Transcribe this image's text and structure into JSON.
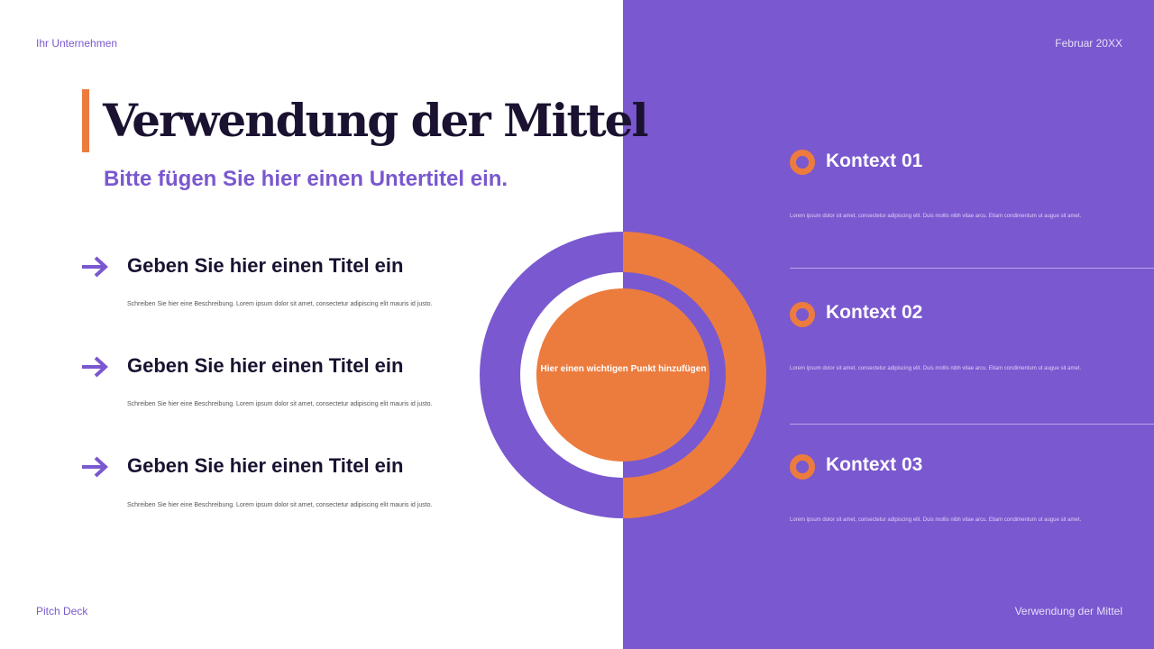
{
  "header": {
    "company": "Ihr Unternehmen",
    "date": "Februar 20XX"
  },
  "footer": {
    "left": "Pitch Deck",
    "right": "Verwendung der Mittel"
  },
  "title": "Verwendung der Mittel",
  "subtitle": "Bitte fügen Sie hier einen Untertitel ein.",
  "items": [
    {
      "title": "Geben Sie hier einen Titel ein",
      "desc": "Schreiben Sie hier eine Beschreibung. Lorem ipsum dolor sit amet, consectetur adipiscing elit mauris id justo.",
      "icon": "arrow-right-icon"
    },
    {
      "title": "Geben Sie hier einen Titel ein",
      "desc": "Schreiben Sie hier eine Beschreibung. Lorem ipsum dolor sit amet, consectetur adipiscing elit mauris id justo.",
      "icon": "arrow-right-icon"
    },
    {
      "title": "Geben Sie hier einen Titel ein",
      "desc": "Schreiben Sie hier eine Beschreibung. Lorem ipsum dolor sit amet, consectetur adipiscing elit mauris id justo.",
      "icon": "arrow-right-icon"
    }
  ],
  "center_text": "Hier einen wichtigen Punkt hinzufügen",
  "contexts": [
    {
      "title": "Kontext 01",
      "desc": "Lorem ipsum dolor sit amet, consectetur adipiscing elit. Duis mollis nibh vitae arcu. Etiam condimentum ut augue sit amet.",
      "icon": "ring-icon"
    },
    {
      "title": "Kontext 02",
      "desc": "Lorem ipsum dolor sit amet, consectetur adipiscing elit. Duis mollis nibh vitae arcu. Etiam condimentum ut augue sit amet.",
      "icon": "ring-icon"
    },
    {
      "title": "Kontext 03",
      "desc": "Lorem ipsum dolor sit amet, consectetur adipiscing elit. Duis mollis nibh vitae arcu. Etiam condimentum ut augue sit amet.",
      "icon": "ring-icon"
    }
  ],
  "colors": {
    "purple": "#7a58cf",
    "orange": "#ec7c3e",
    "dark": "#1a1230"
  }
}
